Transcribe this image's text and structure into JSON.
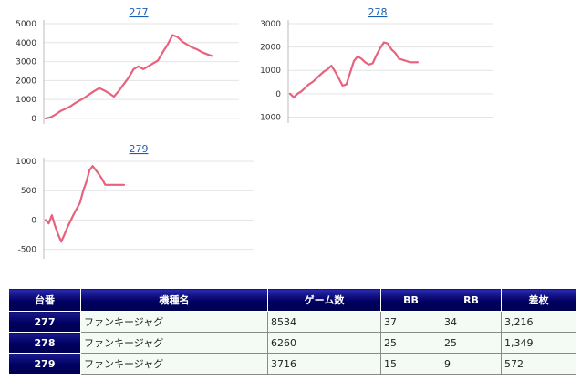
{
  "chart_data": [
    {
      "type": "line",
      "title": "277",
      "yticks": [
        0,
        1000,
        2000,
        3000,
        4000,
        5000
      ],
      "ylim": [
        -100,
        5000
      ],
      "grid": true,
      "x": [
        0,
        60,
        120,
        180,
        240,
        300,
        360,
        420,
        480,
        540,
        600,
        660,
        720,
        780,
        840,
        900,
        960,
        1020,
        1080,
        1140,
        1200,
        1260,
        1320,
        1380,
        1440,
        1500,
        1560,
        1620,
        1680,
        1740,
        1800,
        1860,
        1920,
        1980,
        2040
      ],
      "y": [
        0,
        60,
        200,
        380,
        500,
        620,
        800,
        950,
        1100,
        1280,
        1450,
        1600,
        1480,
        1330,
        1150,
        1450,
        1800,
        2150,
        2600,
        2750,
        2600,
        2750,
        2900,
        3050,
        3500,
        3900,
        4400,
        4300,
        4050,
        3900,
        3750,
        3650,
        3500,
        3400,
        3300
      ]
    },
    {
      "type": "line",
      "title": "278",
      "yticks": [
        -1000,
        0,
        1000,
        2000,
        3000
      ],
      "ylim": [
        -1100,
        3000
      ],
      "grid": true,
      "x": [
        0,
        40,
        80,
        120,
        160,
        200,
        240,
        280,
        320,
        360,
        400,
        440,
        480,
        520,
        560,
        600,
        640,
        680,
        720,
        760,
        800,
        840,
        880,
        920,
        960,
        1000,
        1040,
        1080,
        1120,
        1160,
        1200,
        1240,
        1280,
        1320,
        1360
      ],
      "y": [
        0,
        -150,
        0,
        100,
        250,
        400,
        500,
        650,
        800,
        950,
        1050,
        1200,
        950,
        650,
        350,
        400,
        900,
        1400,
        1600,
        1500,
        1350,
        1250,
        1300,
        1650,
        1950,
        2200,
        2150,
        1900,
        1750,
        1500,
        1450,
        1400,
        1350,
        1350,
        1350
      ]
    },
    {
      "type": "line",
      "title": "279",
      "yticks": [
        -500,
        0,
        500,
        1000
      ],
      "ylim": [
        -600,
        1000
      ],
      "grid": true,
      "x": [
        0,
        30,
        60,
        90,
        120,
        150,
        180,
        210,
        240,
        270,
        300,
        330,
        360,
        390,
        420,
        450,
        480,
        510,
        540,
        570,
        600,
        630,
        660,
        690,
        720,
        750
      ],
      "y": [
        0,
        -60,
        80,
        -100,
        -250,
        -370,
        -250,
        -120,
        -10,
        100,
        200,
        300,
        500,
        650,
        850,
        920,
        850,
        780,
        700,
        600,
        600,
        600,
        600,
        600,
        600,
        600
      ]
    }
  ],
  "table": {
    "headers": [
      "台番",
      "機種名",
      "ゲーム数",
      "BB",
      "RB",
      "差枚"
    ],
    "rows": [
      {
        "num": "277",
        "model": "ファンキージャグ",
        "games": "8534",
        "bb": "37",
        "rb": "34",
        "diff": "3,216"
      },
      {
        "num": "278",
        "model": "ファンキージャグ",
        "games": "6260",
        "bb": "25",
        "rb": "25",
        "diff": "1,349"
      },
      {
        "num": "279",
        "model": "ファンキージャグ",
        "games": "3716",
        "bb": "15",
        "rb": "9",
        "diff": "572"
      }
    ]
  }
}
